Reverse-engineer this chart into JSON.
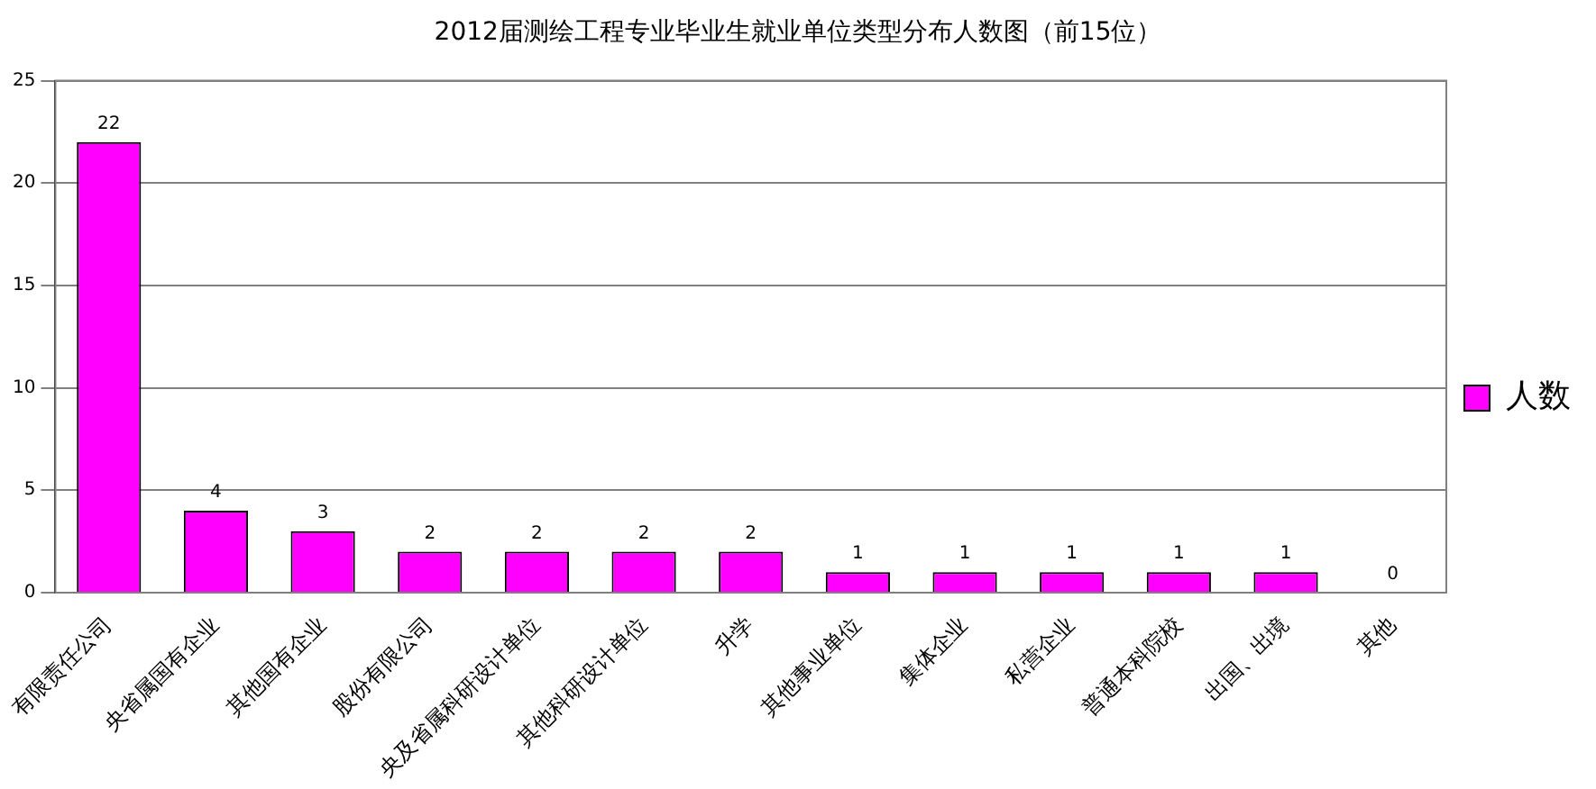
{
  "chart_data": {
    "type": "bar",
    "title": "2012届测绘工程专业毕业生就业单位类型分布人数图（前15位）",
    "categories": [
      "有限责任公司",
      "央省属国有企业",
      "其他国有企业",
      "股份有限公司",
      "央及省属科研设计单位",
      "其他科研设计单位",
      "升学",
      "其他事业单位",
      "集体企业",
      "私营企业",
      "普通本科院校",
      "出国、出境",
      "其他"
    ],
    "series": [
      {
        "name": "人数",
        "color": "#ff00ff",
        "values": [
          22,
          4,
          3,
          2,
          2,
          2,
          2,
          1,
          1,
          1,
          1,
          1,
          0
        ]
      }
    ],
    "ylim": [
      0,
      25
    ],
    "yticks": [
      0,
      5,
      10,
      15,
      20,
      25
    ],
    "grid": "y",
    "legend": "right",
    "data_labels": true
  }
}
